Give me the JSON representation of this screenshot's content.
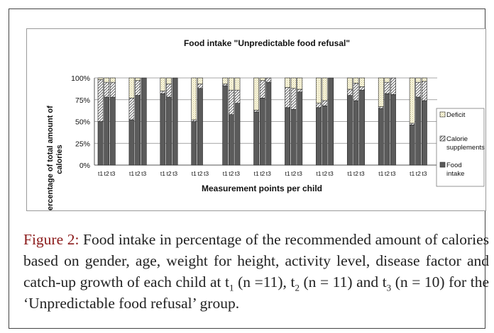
{
  "chart_data": {
    "type": "bar",
    "stacked": true,
    "title": "Food intake \"Unpredictable food refusal\"",
    "xlabel": "Measurement points per child",
    "ylabel": "percentage of total amount of calories",
    "ylim": [
      0,
      100
    ],
    "yticks": [
      "0%",
      "25%",
      "50%",
      "75%",
      "100%"
    ],
    "grid": true,
    "legend_position": "right",
    "groups": 11,
    "tick_labels": [
      "t1",
      "t2",
      "t3"
    ],
    "series": [
      {
        "name": "Food intake",
        "values": [
          [
            50,
            78,
            78
          ],
          [
            52,
            80,
            100
          ],
          [
            82,
            78,
            100
          ],
          [
            50,
            88,
            null
          ],
          [
            91,
            58,
            71
          ],
          [
            61,
            77,
            95
          ],
          [
            66,
            64,
            84
          ],
          [
            66,
            68,
            100
          ],
          [
            80,
            74,
            86
          ],
          [
            65,
            82,
            81
          ],
          [
            46,
            78,
            74
          ]
        ]
      },
      {
        "name": "Calorie supplements",
        "values": [
          [
            48,
            17,
            17
          ],
          [
            25,
            17,
            0
          ],
          [
            3,
            15,
            0
          ],
          [
            2,
            5,
            null
          ],
          [
            2,
            28,
            15
          ],
          [
            2,
            20,
            5
          ],
          [
            23,
            24,
            3
          ],
          [
            5,
            6,
            0
          ],
          [
            7,
            20,
            4
          ],
          [
            2,
            13,
            19
          ],
          [
            2,
            17,
            22
          ]
        ]
      },
      {
        "name": "Deficit",
        "values": [
          [
            2,
            5,
            5
          ],
          [
            23,
            3,
            0
          ],
          [
            15,
            7,
            0
          ],
          [
            48,
            7,
            null
          ],
          [
            7,
            14,
            14
          ],
          [
            37,
            3,
            0
          ],
          [
            11,
            12,
            13
          ],
          [
            29,
            26,
            0
          ],
          [
            13,
            6,
            10
          ],
          [
            33,
            5,
            0
          ],
          [
            52,
            5,
            4
          ]
        ]
      }
    ]
  },
  "caption": {
    "figure_label": "Figure 2:",
    "text_1": "Food intake in percentage of the recommended amount of calories based on gender, age, weight for height, activity level, disease factor and catch-up growth of each child at t",
    "sub_1": "1",
    "text_2": " (n =11), t",
    "sub_2": "2",
    "text_3": " (n = 11) and t",
    "sub_3": "3",
    "text_4": " (n = 10) for the ‘Unpredictable food refusal’ group."
  }
}
